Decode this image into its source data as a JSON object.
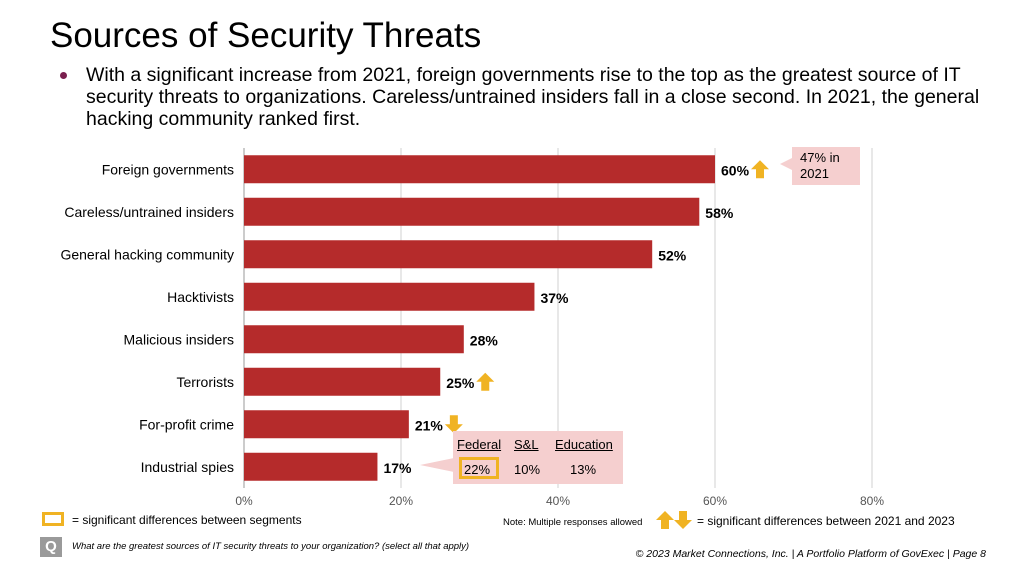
{
  "title": "Sources of Security Threats",
  "bullet": "With a significant increase from 2021, foreign governments rise to the top as the greatest source of IT security threats to organizations. Careless/untrained insiders fall in a close second. In 2021, the general hacking community ranked first.",
  "chart_data": {
    "type": "bar",
    "orientation": "horizontal",
    "categories": [
      "Foreign governments",
      "Careless/untrained insiders",
      "General hacking community",
      "Hacktivists",
      "Malicious insiders",
      "Terrorists",
      "For-profit crime",
      "Industrial spies"
    ],
    "values": [
      60,
      58,
      52,
      37,
      28,
      25,
      21,
      17
    ],
    "value_labels": [
      "60%",
      "58%",
      "52%",
      "37%",
      "28%",
      "25%",
      "21%",
      "17%"
    ],
    "significance": [
      "up",
      null,
      null,
      null,
      null,
      "up",
      "down",
      null
    ],
    "xlim": [
      0,
      80
    ],
    "xticks": [
      0,
      20,
      40,
      60,
      80
    ],
    "xtick_labels": [
      "0%",
      "20%",
      "40%",
      "60%",
      "80%"
    ],
    "bar_color": "#b52b2b",
    "grid": true
  },
  "callout": {
    "text": "47% in 2021"
  },
  "segments": {
    "headers": [
      "Federal",
      "S&L",
      "Education"
    ],
    "values": [
      "22%",
      "10%",
      "13%"
    ]
  },
  "legend": {
    "box_text": "= significant differences between segments",
    "note": "Note: Multiple responses allowed",
    "arrow_text": "= significant differences between 2021 and 2023"
  },
  "question_icon": "Q",
  "question": "What are the greatest sources of IT security threats to your organization? (select all that apply)",
  "footer": "© 2023 Market Connections, Inc. | A Portfolio Platform of GovExec | Page 8",
  "colors": {
    "bar": "#b52b2b",
    "arrow": "#f0b323",
    "callout": "#f5cfcf",
    "grid": "#d0d0d0",
    "bullet": "#7a1f4e"
  }
}
